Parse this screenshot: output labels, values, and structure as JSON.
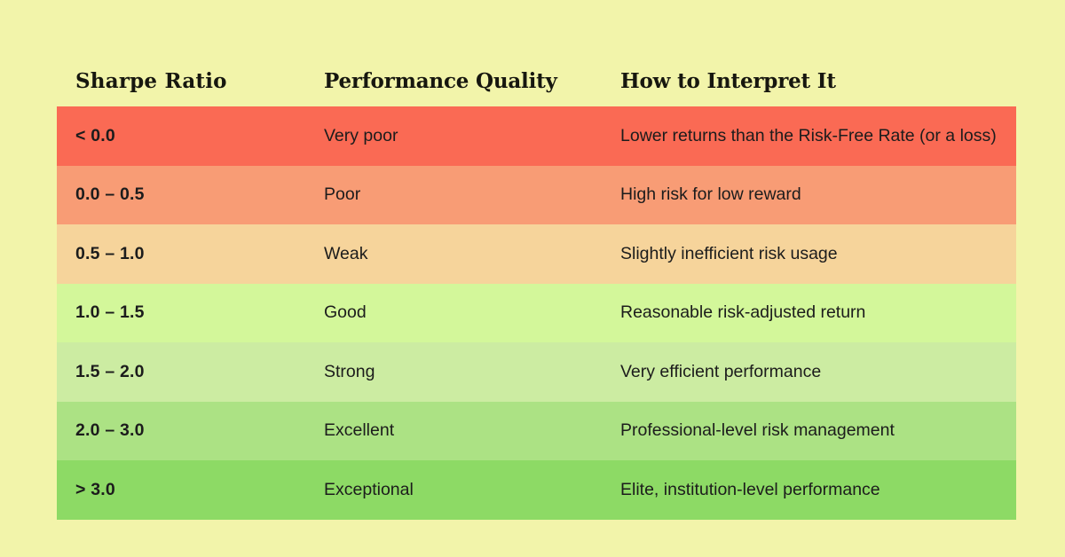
{
  "page": {
    "background": "#F2F4AA",
    "text_color": "#1c1c1c"
  },
  "table": {
    "headers": {
      "sharpe_ratio": "Sharpe Ratio",
      "performance_quality": "Performance Quality",
      "interpretation": "How to Interpret It"
    },
    "rows": [
      {
        "range": "< 0.0",
        "quality": "Very poor",
        "interpretation": "Lower returns than the Risk-Free Rate (or a loss)",
        "color": "#FA6A54"
      },
      {
        "range": "0.0 – 0.5",
        "quality": "Poor",
        "interpretation": "High risk for low reward",
        "color": "#F89C75"
      },
      {
        "range": "0.5 – 1.0",
        "quality": "Weak",
        "interpretation": "Slightly inefficient risk usage",
        "color": "#F6D49B"
      },
      {
        "range": "1.0 – 1.5",
        "quality": "Good",
        "interpretation": "Reasonable risk-adjusted return",
        "color": "#D3F79A"
      },
      {
        "range": "1.5 – 2.0",
        "quality": "Strong",
        "interpretation": "Very efficient performance",
        "color": "#CCECA2"
      },
      {
        "range": "2.0 – 3.0",
        "quality": "Excellent",
        "interpretation": "Professional-level risk management",
        "color": "#ACE284"
      },
      {
        "range": "> 3.0",
        "quality": "Exceptional",
        "interpretation": "Elite, institution-level performance",
        "color": "#8DDA65"
      }
    ]
  },
  "chart_data": {
    "type": "table",
    "title": "",
    "columns": [
      "Sharpe Ratio",
      "Performance Quality",
      "How to Interpret It"
    ],
    "rows": [
      [
        "< 0.0",
        "Very poor",
        "Lower returns than the Risk-Free Rate (or a loss)"
      ],
      [
        "0.0 – 0.5",
        "Poor",
        "High risk for low reward"
      ],
      [
        "0.5 – 1.0",
        "Weak",
        "Slightly inefficient risk usage"
      ],
      [
        "1.0 – 1.5",
        "Good",
        "Reasonable risk-adjusted return"
      ],
      [
        "1.5 – 2.0",
        "Strong",
        "Very efficient performance"
      ],
      [
        "2.0 – 3.0",
        "Excellent",
        "Professional-level risk management"
      ],
      [
        "> 3.0",
        "Exceptional",
        "Elite, institution-level performance"
      ]
    ],
    "row_colors": [
      "#FA6A54",
      "#F89C75",
      "#F6D49B",
      "#D3F79A",
      "#CCECA2",
      "#ACE284",
      "#8DDA65"
    ],
    "layout_hints": {
      "background": "#F2F4AA",
      "header_style": "bold serif, no fill",
      "scale_semantics": "red = worst, green = best"
    }
  }
}
